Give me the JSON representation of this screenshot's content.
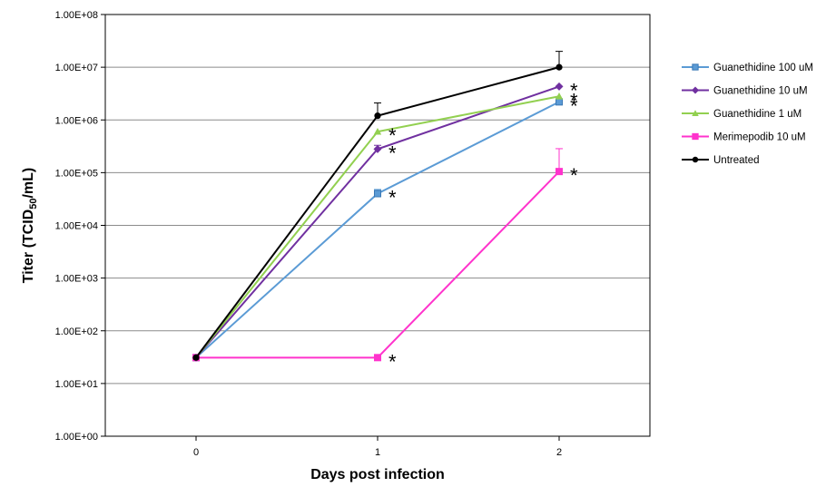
{
  "chart_data": {
    "type": "line",
    "xlabel": "Days post infection",
    "ylabel_main": "Titer  (TCID",
    "ylabel_sub": "50",
    "ylabel_end": "/mL)",
    "y_scale": "log",
    "ylim": [
      1,
      100000000
    ],
    "xlim": [
      -0.5,
      2.5
    ],
    "x": [
      0,
      1,
      2
    ],
    "x_tick_labels": [
      "0",
      "1",
      "2"
    ],
    "y_ticks": [
      1,
      10,
      100,
      1000,
      10000,
      100000,
      1000000,
      10000000,
      100000000
    ],
    "y_tick_labels": [
      "1.00E+00",
      "1.00E+01",
      "1.00E+02",
      "1.00E+03",
      "1.00E+04",
      "1.00E+05",
      "1.00E+06",
      "1.00E+07",
      "1.00E+08"
    ],
    "grid": true,
    "legend_position": "right",
    "series": [
      {
        "name": "Guanethidine 100 uM",
        "color": "#5b9bd5",
        "marker": "square",
        "values": [
          31,
          40000,
          2200000
        ],
        "error": [
          0,
          8000,
          0
        ],
        "significant": [
          false,
          true,
          true
        ]
      },
      {
        "name": "Guanethidine 10 uM",
        "color": "#7030a0",
        "marker": "diamond",
        "values": [
          31,
          280000,
          4300000
        ],
        "error": [
          0,
          50000,
          0
        ],
        "significant": [
          false,
          true,
          true
        ]
      },
      {
        "name": "Guanethidine 1 uM",
        "color": "#92d050",
        "marker": "triangle",
        "values": [
          31,
          600000,
          2800000
        ],
        "error": [
          0,
          0,
          0
        ],
        "significant": [
          false,
          true,
          true
        ]
      },
      {
        "name": "Merimepodib 10 uM",
        "color": "#ff33cc",
        "marker": "square",
        "values": [
          31,
          31,
          105000
        ],
        "error": [
          0,
          0,
          180000
        ],
        "significant": [
          false,
          true,
          true
        ]
      },
      {
        "name": "Untreated",
        "color": "#000000",
        "marker": "circle",
        "values": [
          31,
          1200000,
          10000000
        ],
        "error": [
          0,
          900000,
          10000000
        ],
        "significant": [
          false,
          false,
          false
        ]
      }
    ],
    "annotation_symbol": "*"
  }
}
